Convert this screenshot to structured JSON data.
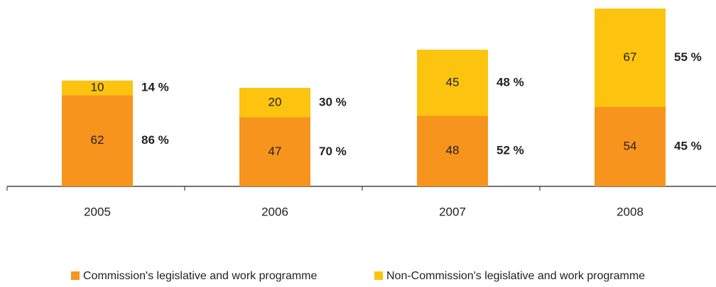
{
  "chart_data": {
    "type": "bar",
    "stacked": true,
    "categories": [
      "2005",
      "2006",
      "2007",
      "2008"
    ],
    "series": [
      {
        "name": "Commission's legislative and work programme",
        "color": "#f7941d",
        "values": [
          62,
          47,
          48,
          54
        ],
        "share_labels": [
          "86 %",
          "70 %",
          "52 %",
          "45 %"
        ]
      },
      {
        "name": "Non-Commission's legislative and work programme",
        "color": "#fcc40f",
        "values": [
          10,
          20,
          45,
          67
        ],
        "share_labels": [
          "14 %",
          "30 %",
          "48 %",
          "55 %"
        ]
      }
    ],
    "ylim": [
      0,
      122
    ]
  }
}
